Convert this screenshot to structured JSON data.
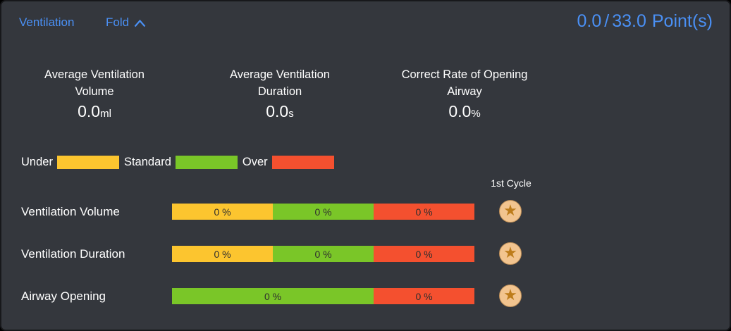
{
  "header": {
    "title": "Ventilation",
    "fold_label": "Fold",
    "score": {
      "earned": "0.0",
      "separator": "/",
      "total": "33.0",
      "unit": "Point(s)"
    }
  },
  "stats": [
    {
      "title_line1": "Average Ventilation",
      "title_line2": "Volume",
      "value": "0.0",
      "unit": "ml"
    },
    {
      "title_line1": "Average Ventilation",
      "title_line2": "Duration",
      "value": "0.0",
      "unit": "s"
    },
    {
      "title_line1": "Correct Rate of Opening",
      "title_line2": "Airway",
      "value": "0.0",
      "unit": "%"
    }
  ],
  "legend": [
    {
      "label": "Under",
      "color": "#fcc52f"
    },
    {
      "label": "Standard",
      "color": "#7ac628"
    },
    {
      "label": "Over",
      "color": "#f4502f"
    }
  ],
  "cycle_header": "1st Cycle",
  "chart_data": {
    "type": "bar",
    "title": "Ventilation performance distribution per metric",
    "categories": [
      "Ventilation Volume",
      "Ventilation Duration",
      "Airway Opening"
    ],
    "series": [
      {
        "name": "Under",
        "values": [
          0,
          0,
          null
        ],
        "color": "#fcc52f"
      },
      {
        "name": "Standard",
        "values": [
          0,
          0,
          0
        ],
        "color": "#7ac628"
      },
      {
        "name": "Over",
        "values": [
          0,
          0,
          0
        ],
        "color": "#f4502f"
      }
    ],
    "value_label_format": "0 %"
  },
  "rows": [
    {
      "label": "Ventilation Volume",
      "segments": [
        {
          "name": "under",
          "text": "0 %",
          "color": "#fcc52f",
          "flex": 1
        },
        {
          "name": "standard",
          "text": "0 %",
          "color": "#7ac628",
          "flex": 1
        },
        {
          "name": "over",
          "text": "0 %",
          "color": "#f4502f",
          "flex": 1
        }
      ]
    },
    {
      "label": "Ventilation Duration",
      "segments": [
        {
          "name": "under",
          "text": "0 %",
          "color": "#fcc52f",
          "flex": 1
        },
        {
          "name": "standard",
          "text": "0 %",
          "color": "#7ac628",
          "flex": 1
        },
        {
          "name": "over",
          "text": "0 %",
          "color": "#f4502f",
          "flex": 1
        }
      ]
    },
    {
      "label": "Airway Opening",
      "segments": [
        {
          "name": "standard",
          "text": "0 %",
          "color": "#7ac628",
          "flex": 2
        },
        {
          "name": "over",
          "text": "0 %",
          "color": "#f4502f",
          "flex": 1
        }
      ]
    }
  ],
  "badge": {
    "glyph": "★",
    "circle_color": "#f2c48f",
    "star_color": "#bd7c1b"
  },
  "colors": {
    "panel_bg": "#34373d",
    "accent_blue": "#4a90f5",
    "text_white": "#ffffff",
    "bar_text": "#2e2e2e"
  }
}
